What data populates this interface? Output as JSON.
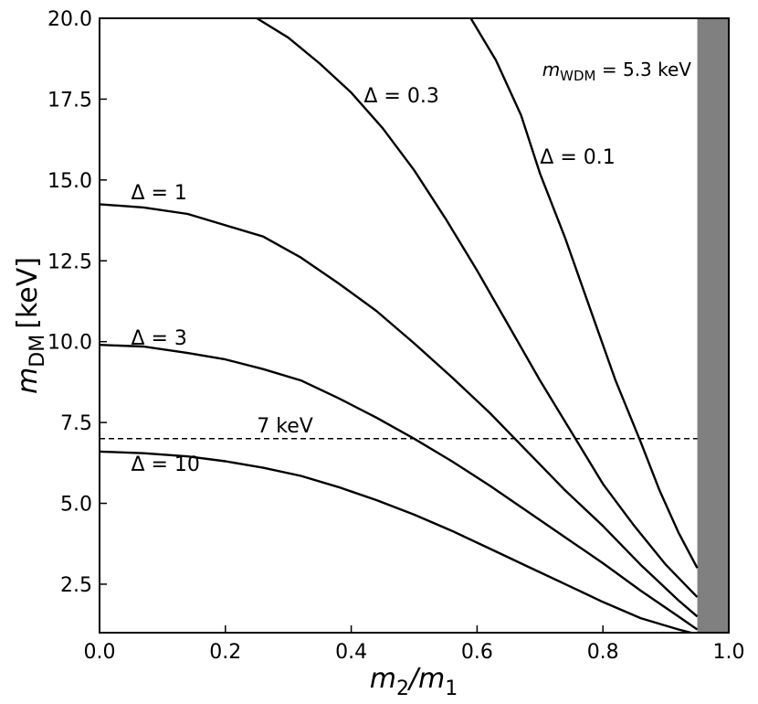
{
  "chart_data": {
    "type": "line",
    "xlabel": {
      "var": "m",
      "sub1": "2",
      "slash": "/",
      "var2": "m",
      "sub2": "1"
    },
    "ylabel": {
      "var": "m",
      "sub": "DM",
      "unit": "[keV]"
    },
    "xlim": [
      0.0,
      1.0
    ],
    "ylim": [
      1.0,
      20.0
    ],
    "xticks": [
      0.0,
      0.2,
      0.4,
      0.6,
      0.8,
      1.0
    ],
    "xtick_labels": [
      "0.0",
      "0.2",
      "0.4",
      "0.6",
      "0.8",
      "1.0"
    ],
    "yticks": [
      2.5,
      5.0,
      7.5,
      10.0,
      12.5,
      15.0,
      17.5,
      20.0
    ],
    "ytick_labels": [
      "2.5",
      "5.0",
      "7.5",
      "10.0",
      "12.5",
      "15.0",
      "17.5",
      "20.0"
    ],
    "grid": false,
    "line_color": "#000000",
    "series": [
      {
        "name": "Δ = 0.1",
        "label": {
          "text": "Δ = 0.1",
          "x": 0.7,
          "y": 15.5
        },
        "x": [
          0.59,
          0.63,
          0.67,
          0.7,
          0.74,
          0.78,
          0.82,
          0.86,
          0.89,
          0.92,
          0.95
        ],
        "y": [
          20.0,
          18.7,
          17.0,
          15.2,
          13.2,
          11.0,
          8.8,
          6.9,
          5.4,
          4.1,
          3.0
        ]
      },
      {
        "name": "Δ = 0.3",
        "label": {
          "text": "Δ = 0.3",
          "x": 0.42,
          "y": 17.4
        },
        "x": [
          0.25,
          0.3,
          0.35,
          0.4,
          0.45,
          0.5,
          0.55,
          0.6,
          0.65,
          0.7,
          0.75,
          0.8,
          0.85,
          0.9,
          0.95
        ],
        "y": [
          20.0,
          19.4,
          18.6,
          17.7,
          16.6,
          15.3,
          13.8,
          12.2,
          10.5,
          8.8,
          7.2,
          5.6,
          4.3,
          3.1,
          2.1
        ]
      },
      {
        "name": "Δ = 1",
        "label": {
          "text": "Δ = 1",
          "x": 0.05,
          "y": 14.4
        },
        "x": [
          0.0,
          0.07,
          0.14,
          0.2,
          0.26,
          0.32,
          0.38,
          0.44,
          0.5,
          0.56,
          0.62,
          0.68,
          0.74,
          0.8,
          0.86,
          0.92,
          0.95
        ],
        "y": [
          14.25,
          14.15,
          13.95,
          13.6,
          13.25,
          12.6,
          11.8,
          10.95,
          9.95,
          8.9,
          7.8,
          6.6,
          5.4,
          4.3,
          3.1,
          2.0,
          1.5
        ]
      },
      {
        "name": "Δ = 3",
        "label": {
          "text": "Δ = 3",
          "x": 0.05,
          "y": 9.9
        },
        "x": [
          0.0,
          0.07,
          0.14,
          0.2,
          0.26,
          0.32,
          0.38,
          0.44,
          0.5,
          0.56,
          0.62,
          0.68,
          0.74,
          0.8,
          0.86,
          0.92,
          0.95
        ],
        "y": [
          9.9,
          9.85,
          9.65,
          9.45,
          9.15,
          8.8,
          8.25,
          7.65,
          7.0,
          6.3,
          5.55,
          4.75,
          3.95,
          3.15,
          2.3,
          1.5,
          1.1
        ]
      },
      {
        "name": "Δ = 10",
        "label": {
          "text": "Δ = 10",
          "x": 0.05,
          "y": 6.0
        },
        "x": [
          0.0,
          0.07,
          0.14,
          0.2,
          0.26,
          0.32,
          0.38,
          0.44,
          0.5,
          0.56,
          0.62,
          0.68,
          0.74,
          0.8,
          0.86,
          0.92,
          0.94
        ],
        "y": [
          6.6,
          6.55,
          6.45,
          6.3,
          6.1,
          5.85,
          5.5,
          5.1,
          4.65,
          4.15,
          3.6,
          3.05,
          2.5,
          1.95,
          1.45,
          1.1,
          1.0
        ]
      }
    ],
    "hline": {
      "y": 7.0,
      "style": "dashed",
      "label": "7 keV",
      "label_x": 0.25
    },
    "shaded_region": {
      "x0": 0.95,
      "x1": 1.0,
      "color": "#808080"
    },
    "annotation": {
      "var": "m",
      "sub": "WDM",
      "text": " = 5.3 keV"
    }
  }
}
